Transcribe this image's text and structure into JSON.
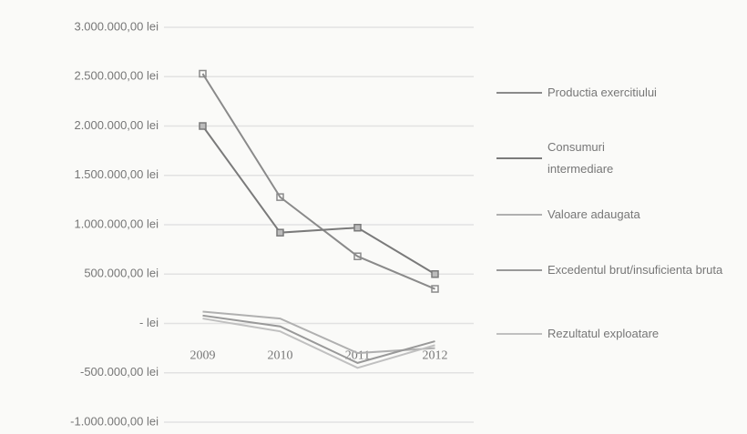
{
  "chart_data": {
    "type": "line",
    "categories": [
      "2009",
      "2010",
      "2011",
      "2012"
    ],
    "series": [
      {
        "name": "Productia exercitiului",
        "color": "#8a8a8a",
        "values": [
          2530000,
          1280000,
          680000,
          350000
        ]
      },
      {
        "name": "Consumuri intermediare",
        "color": "#7a7a7a",
        "values": [
          2000000,
          920000,
          970000,
          500000
        ]
      },
      {
        "name": "Valoare adaugata",
        "color": "#b0b0b0",
        "values": [
          120000,
          50000,
          -300000,
          -250000
        ]
      },
      {
        "name": "Excedentul brut/insuficienta bruta",
        "color": "#999999",
        "values": [
          80000,
          -30000,
          -400000,
          -180000
        ]
      },
      {
        "name": "Rezultatul exploatare",
        "color": "#c0c0c0",
        "values": [
          50000,
          -80000,
          -450000,
          -220000
        ]
      }
    ],
    "ylim": [
      -1000000,
      3000000
    ],
    "yticks": [
      {
        "value": -1000000,
        "label": "-1.000.000,00 lei"
      },
      {
        "value": -500000,
        "label": "-500.000,00 lei"
      },
      {
        "value": 0,
        "label": "- lei"
      },
      {
        "value": 500000,
        "label": "500.000,00 lei"
      },
      {
        "value": 1000000,
        "label": "1.000.000,00 lei"
      },
      {
        "value": 1500000,
        "label": "1.500.000,00 lei"
      },
      {
        "value": 2000000,
        "label": "2.000.000,00 lei"
      },
      {
        "value": 2500000,
        "label": "2.500.000,00 lei"
      },
      {
        "value": 3000000,
        "label": "3.000.000,00 lei"
      }
    ],
    "grid": true
  }
}
